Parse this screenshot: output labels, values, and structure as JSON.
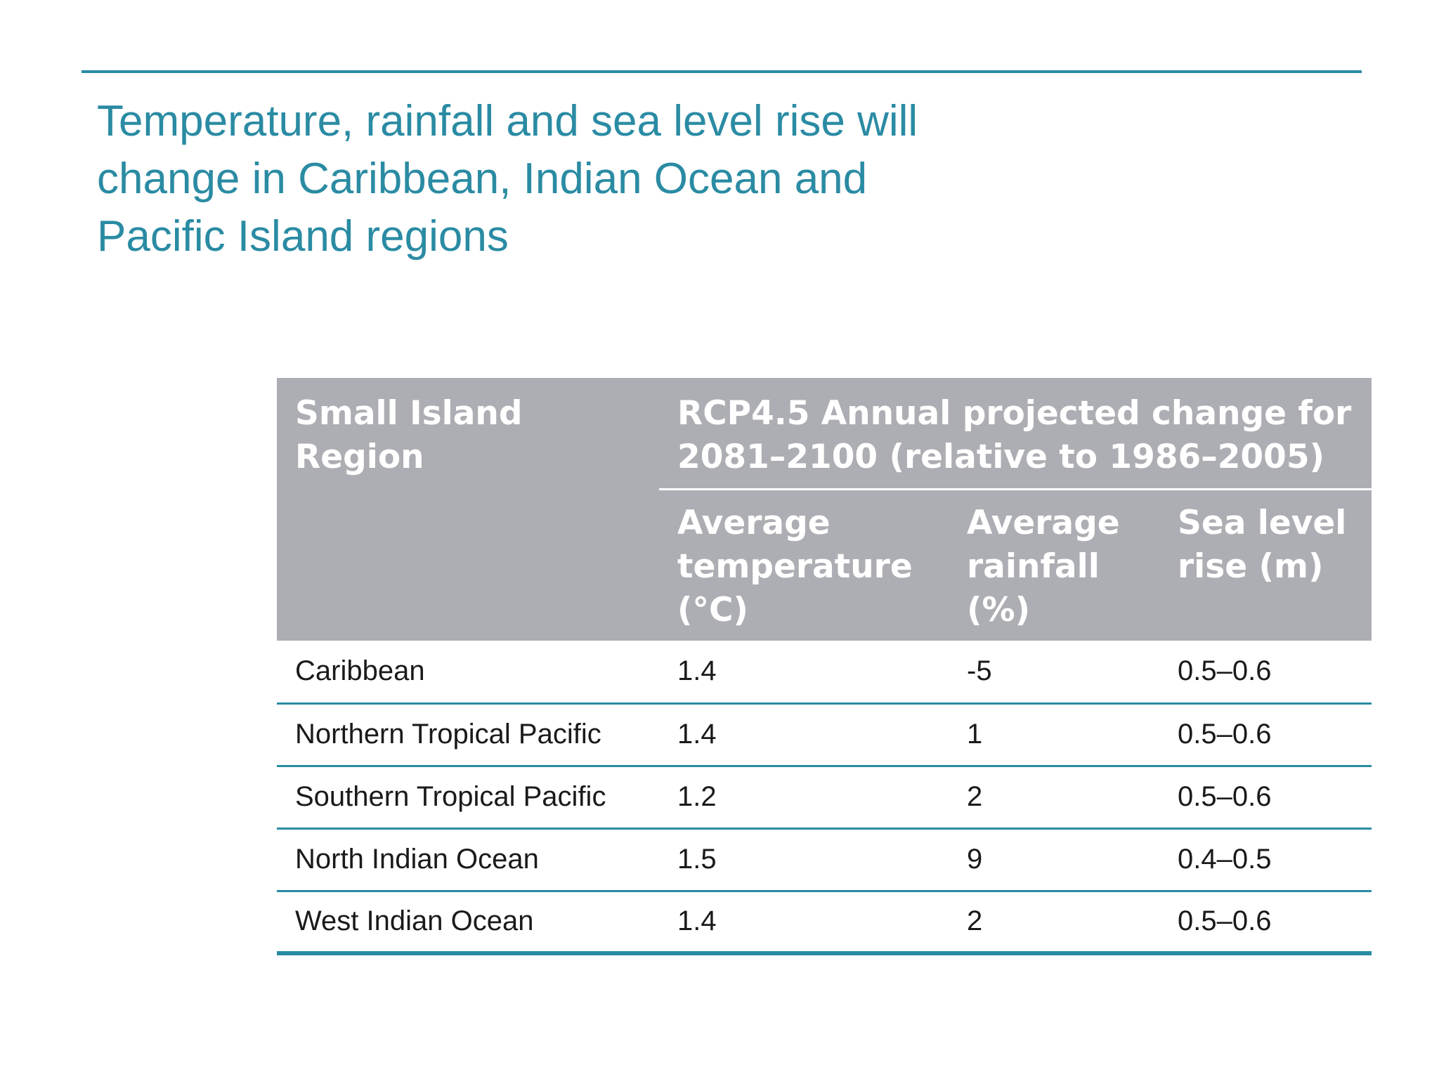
{
  "title": "Temperature, rainfall and sea level rise will change in Caribbean, Indian Ocean and Pacific Island regions",
  "table": {
    "region_header": "Small Island Region",
    "group_header": "RCP4.5 Annual projected change for 2081–2100 (relative to 1986–2005)",
    "columns": [
      "Average temperature (°C)",
      "Average rainfall (%)",
      "Sea level rise (m)"
    ],
    "rows": [
      {
        "region": "Caribbean",
        "temperature": "1.4",
        "rainfall": "-5",
        "sea_level": "0.5–0.6"
      },
      {
        "region": "Northern Tropical Pacific",
        "temperature": "1.4",
        "rainfall": "1",
        "sea_level": "0.5–0.6"
      },
      {
        "region": "Southern Tropical Pacific",
        "temperature": "1.2",
        "rainfall": "2",
        "sea_level": "0.5–0.6"
      },
      {
        "region": "North Indian Ocean",
        "temperature": "1.5",
        "rainfall": "9",
        "sea_level": "0.4–0.5"
      },
      {
        "region": "West Indian Ocean",
        "temperature": "1.4",
        "rainfall": "2",
        "sea_level": "0.5–0.6"
      }
    ]
  },
  "colors": {
    "accent": "#2a8ba3",
    "header_bg": "#adaeb3",
    "header_text": "#ffffff",
    "body_text": "#1a1a1a"
  }
}
